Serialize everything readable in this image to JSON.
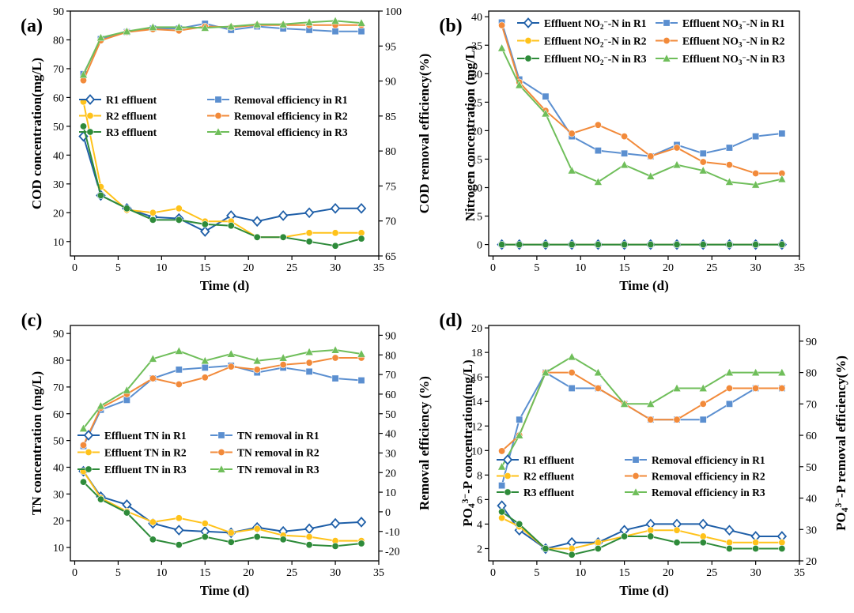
{
  "colors": {
    "R1": "#1f5fa8",
    "R1r": "#5b8fd0",
    "R2": "#ffc21a",
    "R2r": "#f28a3a",
    "R3": "#2e8b3a",
    "R3r": "#6fbe5a"
  },
  "chart_data": [
    {
      "type": "line",
      "panel_label": "(a)",
      "xlabel": "Time (d)",
      "ylabel": "COD concentration(mg/L)",
      "y2label": "COD removal efficiency(%)",
      "xlim": [
        -0.5,
        35
      ],
      "xticks": [
        0,
        5,
        10,
        15,
        20,
        25,
        30,
        35
      ],
      "ylim": [
        5,
        90
      ],
      "yticks": [
        10,
        20,
        30,
        40,
        50,
        60,
        70,
        80,
        90
      ],
      "y2lim": [
        65,
        100
      ],
      "y2ticks": [
        65,
        70,
        75,
        80,
        85,
        90,
        95,
        100
      ],
      "legend_position": "center-right",
      "legend_columns": 2,
      "x": [
        1,
        3,
        6,
        9,
        12,
        15,
        18,
        21,
        24,
        27,
        30,
        33
      ],
      "series": [
        {
          "name": "R1 effluent",
          "axis": "left",
          "marker": "diamond",
          "color_key": "R1",
          "values": [
            46.5,
            26,
            21.5,
            18.5,
            18,
            13.5,
            19,
            17,
            19,
            20,
            21.5,
            21.5
          ]
        },
        {
          "name": "Removal efficiency in R1",
          "axis": "right",
          "marker": "square",
          "color_key": "R1r",
          "values": [
            91,
            96,
            97,
            97.5,
            97.5,
            98.2,
            97.3,
            97.8,
            97.5,
            97.3,
            97.1,
            97.1
          ]
        },
        {
          "name": "R2 effluent",
          "axis": "left",
          "marker": "circle",
          "color_key": "R2",
          "values": [
            58.5,
            29,
            21,
            20,
            21.5,
            17,
            17,
            11.5,
            11.5,
            13,
            13,
            13
          ]
        },
        {
          "name": "Removal efficiency in R2",
          "axis": "right",
          "marker": "circle",
          "color_key": "R2r",
          "values": [
            90.1,
            95.8,
            97,
            97.4,
            97.2,
            97.8,
            97.7,
            98,
            98,
            98,
            98,
            98
          ]
        },
        {
          "name": "R3 effluent",
          "axis": "left",
          "marker": "circle",
          "color_key": "R3",
          "values": [
            50,
            26,
            21.5,
            17.5,
            17.5,
            16,
            15.5,
            11.5,
            11.5,
            10,
            8.5,
            11
          ]
        },
        {
          "name": "Removal efficiency in R3",
          "axis": "right",
          "marker": "triangle",
          "color_key": "R3r",
          "values": [
            90.9,
            96.2,
            97.1,
            97.7,
            97.7,
            97.6,
            97.8,
            98.1,
            98.1,
            98.4,
            98.6,
            98.3
          ]
        }
      ]
    },
    {
      "type": "line",
      "panel_label": "(b)",
      "xlabel": "Time (d)",
      "ylabel": "Nitrogen concentration (mg/L)",
      "xlim": [
        -0.5,
        35
      ],
      "xticks": [
        0,
        5,
        10,
        15,
        20,
        25,
        30,
        35
      ],
      "ylim": [
        -2,
        41
      ],
      "yticks": [
        0,
        5,
        10,
        15,
        20,
        25,
        30,
        35,
        40
      ],
      "legend_position": "top-right",
      "legend_columns": 2,
      "x": [
        1,
        3,
        6,
        9,
        12,
        15,
        18,
        21,
        24,
        27,
        30,
        33
      ],
      "series": [
        {
          "name": "Effluent NO₂⁻-N in R1",
          "axis": "left",
          "marker": "diamond",
          "color_key": "R1",
          "values": [
            0,
            0,
            0,
            0,
            0,
            0,
            0,
            0,
            0,
            0,
            0,
            0
          ]
        },
        {
          "name": "Effluent NO₃⁻-N in R1",
          "axis": "left",
          "marker": "square",
          "color_key": "R1r",
          "values": [
            39,
            29,
            26,
            19,
            16.5,
            16,
            15.5,
            17.5,
            16,
            17,
            19,
            19.5
          ]
        },
        {
          "name": "Effluent NO₂⁻-N in R2",
          "axis": "left",
          "marker": "circle",
          "color_key": "R2",
          "values": [
            0,
            0,
            0,
            0,
            0,
            0,
            0,
            0,
            0,
            0,
            0,
            0
          ]
        },
        {
          "name": "Effluent NO₃⁻-N in R2",
          "axis": "left",
          "marker": "circle",
          "color_key": "R2r",
          "values": [
            38.5,
            28.5,
            23.5,
            19.5,
            21,
            19,
            15.5,
            17,
            14.5,
            14,
            12.5,
            12.5
          ]
        },
        {
          "name": "Effluent NO₂⁻-N in R3",
          "axis": "left",
          "marker": "circle",
          "color_key": "R3",
          "values": [
            0,
            0,
            0,
            0,
            0,
            0,
            0,
            0,
            0,
            0,
            0,
            0
          ]
        },
        {
          "name": "Effluent NO₃⁻-N in R3",
          "axis": "left",
          "marker": "triangle",
          "color_key": "R3r",
          "values": [
            34.5,
            28,
            23,
            13,
            11,
            14,
            12,
            14,
            13,
            11,
            10.5,
            11.5
          ]
        }
      ]
    },
    {
      "type": "line",
      "panel_label": "(c)",
      "xlabel": "Time (d)",
      "ylabel": "TN concentration (mg/L)",
      "y2label": "Removal efficiency (%)",
      "xlim": [
        -0.5,
        35
      ],
      "xticks": [
        0,
        5,
        10,
        15,
        20,
        25,
        30,
        35
      ],
      "ylim": [
        5,
        93
      ],
      "yticks": [
        10,
        20,
        30,
        40,
        50,
        60,
        70,
        80,
        90
      ],
      "y2lim": [
        -25,
        95
      ],
      "y2ticks": [
        -20,
        -10,
        0,
        10,
        20,
        30,
        40,
        50,
        60,
        70,
        80,
        90
      ],
      "legend_position": "center-right",
      "legend_columns": 2,
      "x": [
        1,
        3,
        6,
        9,
        12,
        15,
        18,
        21,
        24,
        27,
        30,
        33
      ],
      "series": [
        {
          "name": "Effluent TN in R1",
          "axis": "left",
          "marker": "diamond",
          "color_key": "R1",
          "values": [
            38.5,
            29,
            26,
            19,
            16.5,
            16,
            15.5,
            17.5,
            16,
            17,
            19,
            19.5
          ]
        },
        {
          "name": "TN removal in R1",
          "axis": "right",
          "marker": "square",
          "color_key": "R1r",
          "values": [
            33.5,
            52,
            57,
            68,
            72.5,
            73.5,
            74.5,
            71,
            73.5,
            71.5,
            68,
            67
          ]
        },
        {
          "name": "Effluent TN in R2",
          "axis": "left",
          "marker": "circle",
          "color_key": "R2",
          "values": [
            38.5,
            28.5,
            23.5,
            19.5,
            21,
            19,
            15.5,
            17,
            14.5,
            14,
            12.5,
            12.5
          ]
        },
        {
          "name": "TN removal in R2",
          "axis": "right",
          "marker": "circle",
          "color_key": "R2r",
          "values": [
            34,
            53,
            60,
            68,
            65,
            68.5,
            74,
            72.5,
            75,
            76,
            78.5,
            78.5
          ]
        },
        {
          "name": "Effluent TN in R3",
          "axis": "left",
          "marker": "circle",
          "color_key": "R3",
          "values": [
            34.5,
            28,
            23,
            13,
            11,
            14,
            12,
            14,
            13,
            11,
            10.5,
            11.5
          ]
        },
        {
          "name": "TN removal in R3",
          "axis": "right",
          "marker": "triangle",
          "color_key": "R3r",
          "values": [
            42.5,
            54,
            62,
            78,
            82,
            77,
            80.5,
            77,
            78.5,
            81.5,
            82.5,
            80.5
          ]
        }
      ]
    },
    {
      "type": "line",
      "panel_label": "(d)",
      "xlabel": "Time (d)",
      "ylabel": "PO₄³⁻-P concentration(mg/L)",
      "y2label": "PO₄³⁻-P removal efficiency(%)",
      "xlim": [
        -0.5,
        35
      ],
      "xticks": [
        0,
        5,
        10,
        15,
        20,
        25,
        30,
        35
      ],
      "ylim": [
        1,
        20.2
      ],
      "yticks": [
        2,
        4,
        6,
        8,
        10,
        12,
        14,
        16,
        18,
        20
      ],
      "y2lim": [
        20,
        95
      ],
      "y2ticks": [
        20,
        30,
        40,
        50,
        60,
        70,
        80,
        90
      ],
      "legend_position": "center-right",
      "legend_columns": 2,
      "x": [
        1,
        3,
        6,
        9,
        12,
        15,
        18,
        21,
        24,
        27,
        30,
        33
      ],
      "series": [
        {
          "name": "R1 effluent",
          "axis": "left",
          "marker": "diamond",
          "color_key": "R1",
          "values": [
            5.5,
            3.5,
            2,
            2.5,
            2.5,
            3.5,
            4,
            4,
            4,
            3.5,
            3,
            3
          ]
        },
        {
          "name": "Removal efficiency in R1",
          "axis": "right",
          "marker": "square",
          "color_key": "R1r",
          "values": [
            44,
            65,
            80,
            75,
            75,
            70,
            65,
            65,
            65,
            70,
            75,
            75
          ]
        },
        {
          "name": "R2 effluent",
          "axis": "left",
          "marker": "circle",
          "color_key": "R2",
          "values": [
            4.5,
            3.8,
            2,
            2,
            2.5,
            3,
            3.5,
            3.5,
            3,
            2.5,
            2.5,
            2.5
          ]
        },
        {
          "name": "Removal efficiency in R2",
          "axis": "right",
          "marker": "circle",
          "color_key": "R2r",
          "values": [
            55,
            60,
            80,
            80,
            75,
            70,
            65,
            65,
            70,
            75,
            75,
            75
          ]
        },
        {
          "name": "R3 effluent",
          "axis": "left",
          "marker": "circle",
          "color_key": "R3",
          "values": [
            5,
            4,
            2,
            1.5,
            2,
            3,
            3,
            2.5,
            2.5,
            2,
            2,
            2
          ]
        },
        {
          "name": "Removal efficiency in R3",
          "axis": "right",
          "marker": "triangle",
          "color_key": "R3r",
          "values": [
            50,
            60,
            80,
            85,
            80,
            70,
            70,
            75,
            75,
            80,
            80,
            80
          ]
        }
      ]
    }
  ]
}
